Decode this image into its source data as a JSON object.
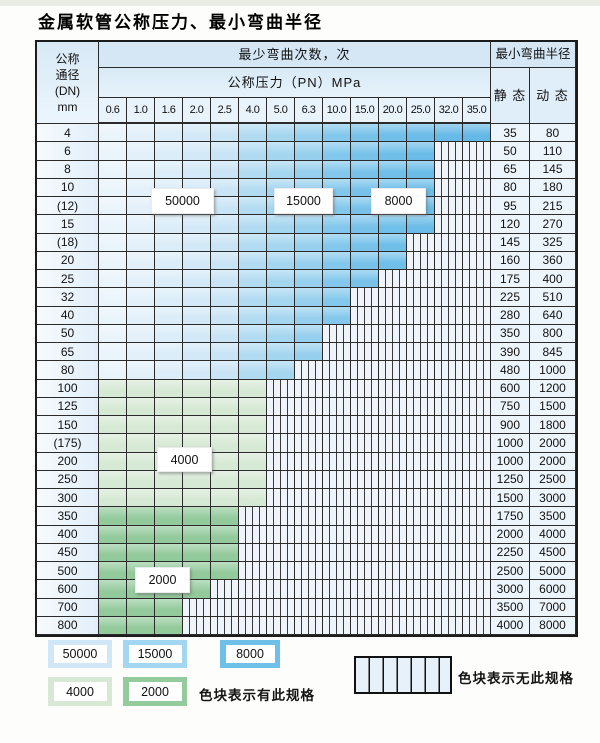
{
  "title": "金属软管公称压力、最小弯曲半径",
  "table": {
    "header": {
      "dn_lines": [
        "公称",
        "通径",
        "(DN)",
        "mm"
      ],
      "bend_cycles": "最少弯曲次数，次",
      "pressure": "公称压力（PN）MPa",
      "radius": "最小弯曲半径",
      "static_label": "静 态",
      "dynamic_label": "动 态",
      "pressures": [
        "0.6",
        "1.0",
        "1.6",
        "2.0",
        "2.5",
        "4.0",
        "5.0",
        "6.3",
        "10.0",
        "15.0",
        "20.0",
        "25.0",
        "32.0",
        "35.0"
      ]
    },
    "overlay_labels": {
      "b50000": "50000",
      "b15000": "15000",
      "b8000": "8000",
      "g4000": "4000",
      "g2000": "2000"
    },
    "rows": [
      {
        "dn": "4",
        "static": "35",
        "dynamic": "80",
        "zone": "blue",
        "last": 13
      },
      {
        "dn": "6",
        "static": "50",
        "dynamic": "110",
        "zone": "blue",
        "last": 11
      },
      {
        "dn": "8",
        "static": "65",
        "dynamic": "145",
        "zone": "blue",
        "last": 11
      },
      {
        "dn": "10",
        "static": "80",
        "dynamic": "180",
        "zone": "blue",
        "last": 11
      },
      {
        "dn": "(12)",
        "static": "95",
        "dynamic": "215",
        "zone": "blue",
        "last": 11
      },
      {
        "dn": "15",
        "static": "120",
        "dynamic": "270",
        "zone": "blue",
        "last": 11
      },
      {
        "dn": "(18)",
        "static": "145",
        "dynamic": "325",
        "zone": "blue",
        "last": 10
      },
      {
        "dn": "20",
        "static": "160",
        "dynamic": "360",
        "zone": "blue",
        "last": 10
      },
      {
        "dn": "25",
        "static": "175",
        "dynamic": "400",
        "zone": "blue",
        "last": 9
      },
      {
        "dn": "32",
        "static": "225",
        "dynamic": "510",
        "zone": "blue",
        "last": 8
      },
      {
        "dn": "40",
        "static": "280",
        "dynamic": "640",
        "zone": "blue",
        "last": 8
      },
      {
        "dn": "50",
        "static": "350",
        "dynamic": "800",
        "zone": "blue",
        "last": 7
      },
      {
        "dn": "65",
        "static": "390",
        "dynamic": "845",
        "zone": "blue",
        "last": 7
      },
      {
        "dn": "80",
        "static": "480",
        "dynamic": "1000",
        "zone": "blue",
        "last": 6
      },
      {
        "dn": "100",
        "static": "600",
        "dynamic": "1200",
        "zone": "green_light",
        "last": 5
      },
      {
        "dn": "125",
        "static": "750",
        "dynamic": "1500",
        "zone": "green_light",
        "last": 5
      },
      {
        "dn": "150",
        "static": "900",
        "dynamic": "1800",
        "zone": "green_light",
        "last": 5
      },
      {
        "dn": "(175)",
        "static": "1000",
        "dynamic": "2000",
        "zone": "green_light",
        "last": 5
      },
      {
        "dn": "200",
        "static": "1000",
        "dynamic": "2000",
        "zone": "green_light",
        "last": 5
      },
      {
        "dn": "250",
        "static": "1250",
        "dynamic": "2500",
        "zone": "green_light",
        "last": 5
      },
      {
        "dn": "300",
        "static": "1500",
        "dynamic": "3000",
        "zone": "green_light",
        "last": 5
      },
      {
        "dn": "350",
        "static": "1750",
        "dynamic": "3500",
        "zone": "green_dark",
        "last": 4
      },
      {
        "dn": "400",
        "static": "2000",
        "dynamic": "4000",
        "zone": "green_dark",
        "last": 4
      },
      {
        "dn": "450",
        "static": "2250",
        "dynamic": "4500",
        "zone": "green_dark",
        "last": 4
      },
      {
        "dn": "500",
        "static": "2500",
        "dynamic": "5000",
        "zone": "green_dark",
        "last": 4
      },
      {
        "dn": "600",
        "static": "3000",
        "dynamic": "6000",
        "zone": "green_dark",
        "last": 3
      },
      {
        "dn": "700",
        "static": "3500",
        "dynamic": "7000",
        "zone": "green_dark",
        "last": 2
      },
      {
        "dn": "800",
        "static": "4000",
        "dynamic": "8000",
        "zone": "green_dark",
        "last": 2
      }
    ]
  },
  "colors": {
    "blue_cols": [
      "#eaf4fb",
      "#e3f0fa",
      "#dbedf8",
      "#d3e9f7",
      "#c9e4f5",
      "#b2dbf2",
      "#a5d6f0",
      "#97d0ee",
      "#83c8ec",
      "#78c2ea",
      "#70bfe9",
      "#6bbce8",
      "#67bae7",
      "#64b8e6"
    ],
    "green_light": "#d6e9d4",
    "green_dark": "#92ca9b"
  },
  "legend": {
    "items": [
      {
        "label": "50000",
        "color": "#cfe7f7"
      },
      {
        "label": "15000",
        "color": "#a3d6f1"
      },
      {
        "label": "8000",
        "color": "#6fc0e8"
      },
      {
        "label": "4000",
        "color": "#d7e9d5"
      },
      {
        "label": "2000",
        "color": "#93cb9c"
      }
    ],
    "has_spec": "色块表示有此规格",
    "no_spec": "色块表示无此规格"
  }
}
